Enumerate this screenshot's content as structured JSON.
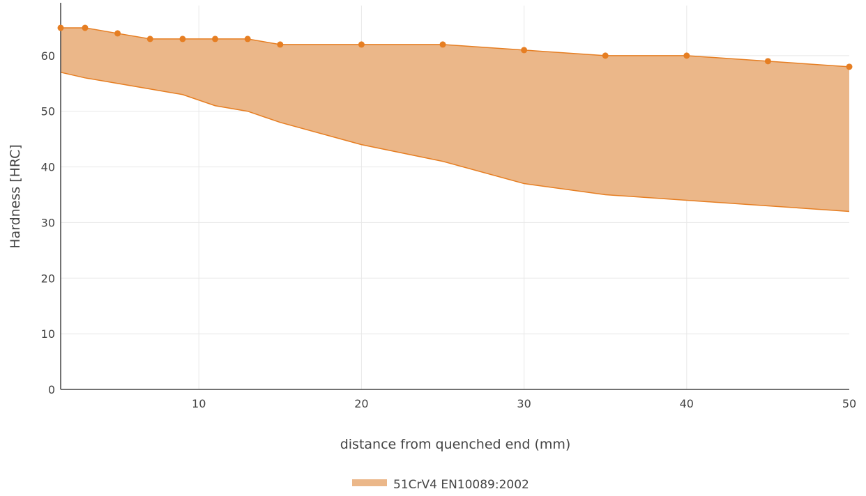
{
  "chart_data": {
    "type": "area",
    "xlabel": "distance from quenched end (mm)",
    "ylabel": "Hardness [HRC]",
    "xlim": [
      1.5,
      50
    ],
    "ylim": [
      0,
      69
    ],
    "x_ticks": [
      10,
      20,
      30,
      40,
      50
    ],
    "y_ticks": [
      0,
      10,
      20,
      30,
      40,
      50,
      60
    ],
    "grid": true,
    "legend_position": "bottom-center",
    "series": [
      {
        "name": "51CrV4 EN10089:2002",
        "color": "#e67e22",
        "fill_color": "#ebb789",
        "x": [
          1.5,
          3,
          5,
          7,
          9,
          11,
          13,
          15,
          20,
          25,
          30,
          35,
          40,
          45,
          50
        ],
        "max": [
          65,
          65,
          64,
          63,
          63,
          63,
          63,
          62,
          62,
          62,
          61,
          60,
          60,
          59,
          58
        ],
        "min": [
          57,
          56,
          55,
          54,
          53,
          51,
          50,
          48,
          44,
          41,
          37,
          35,
          34,
          33,
          32
        ]
      }
    ]
  }
}
